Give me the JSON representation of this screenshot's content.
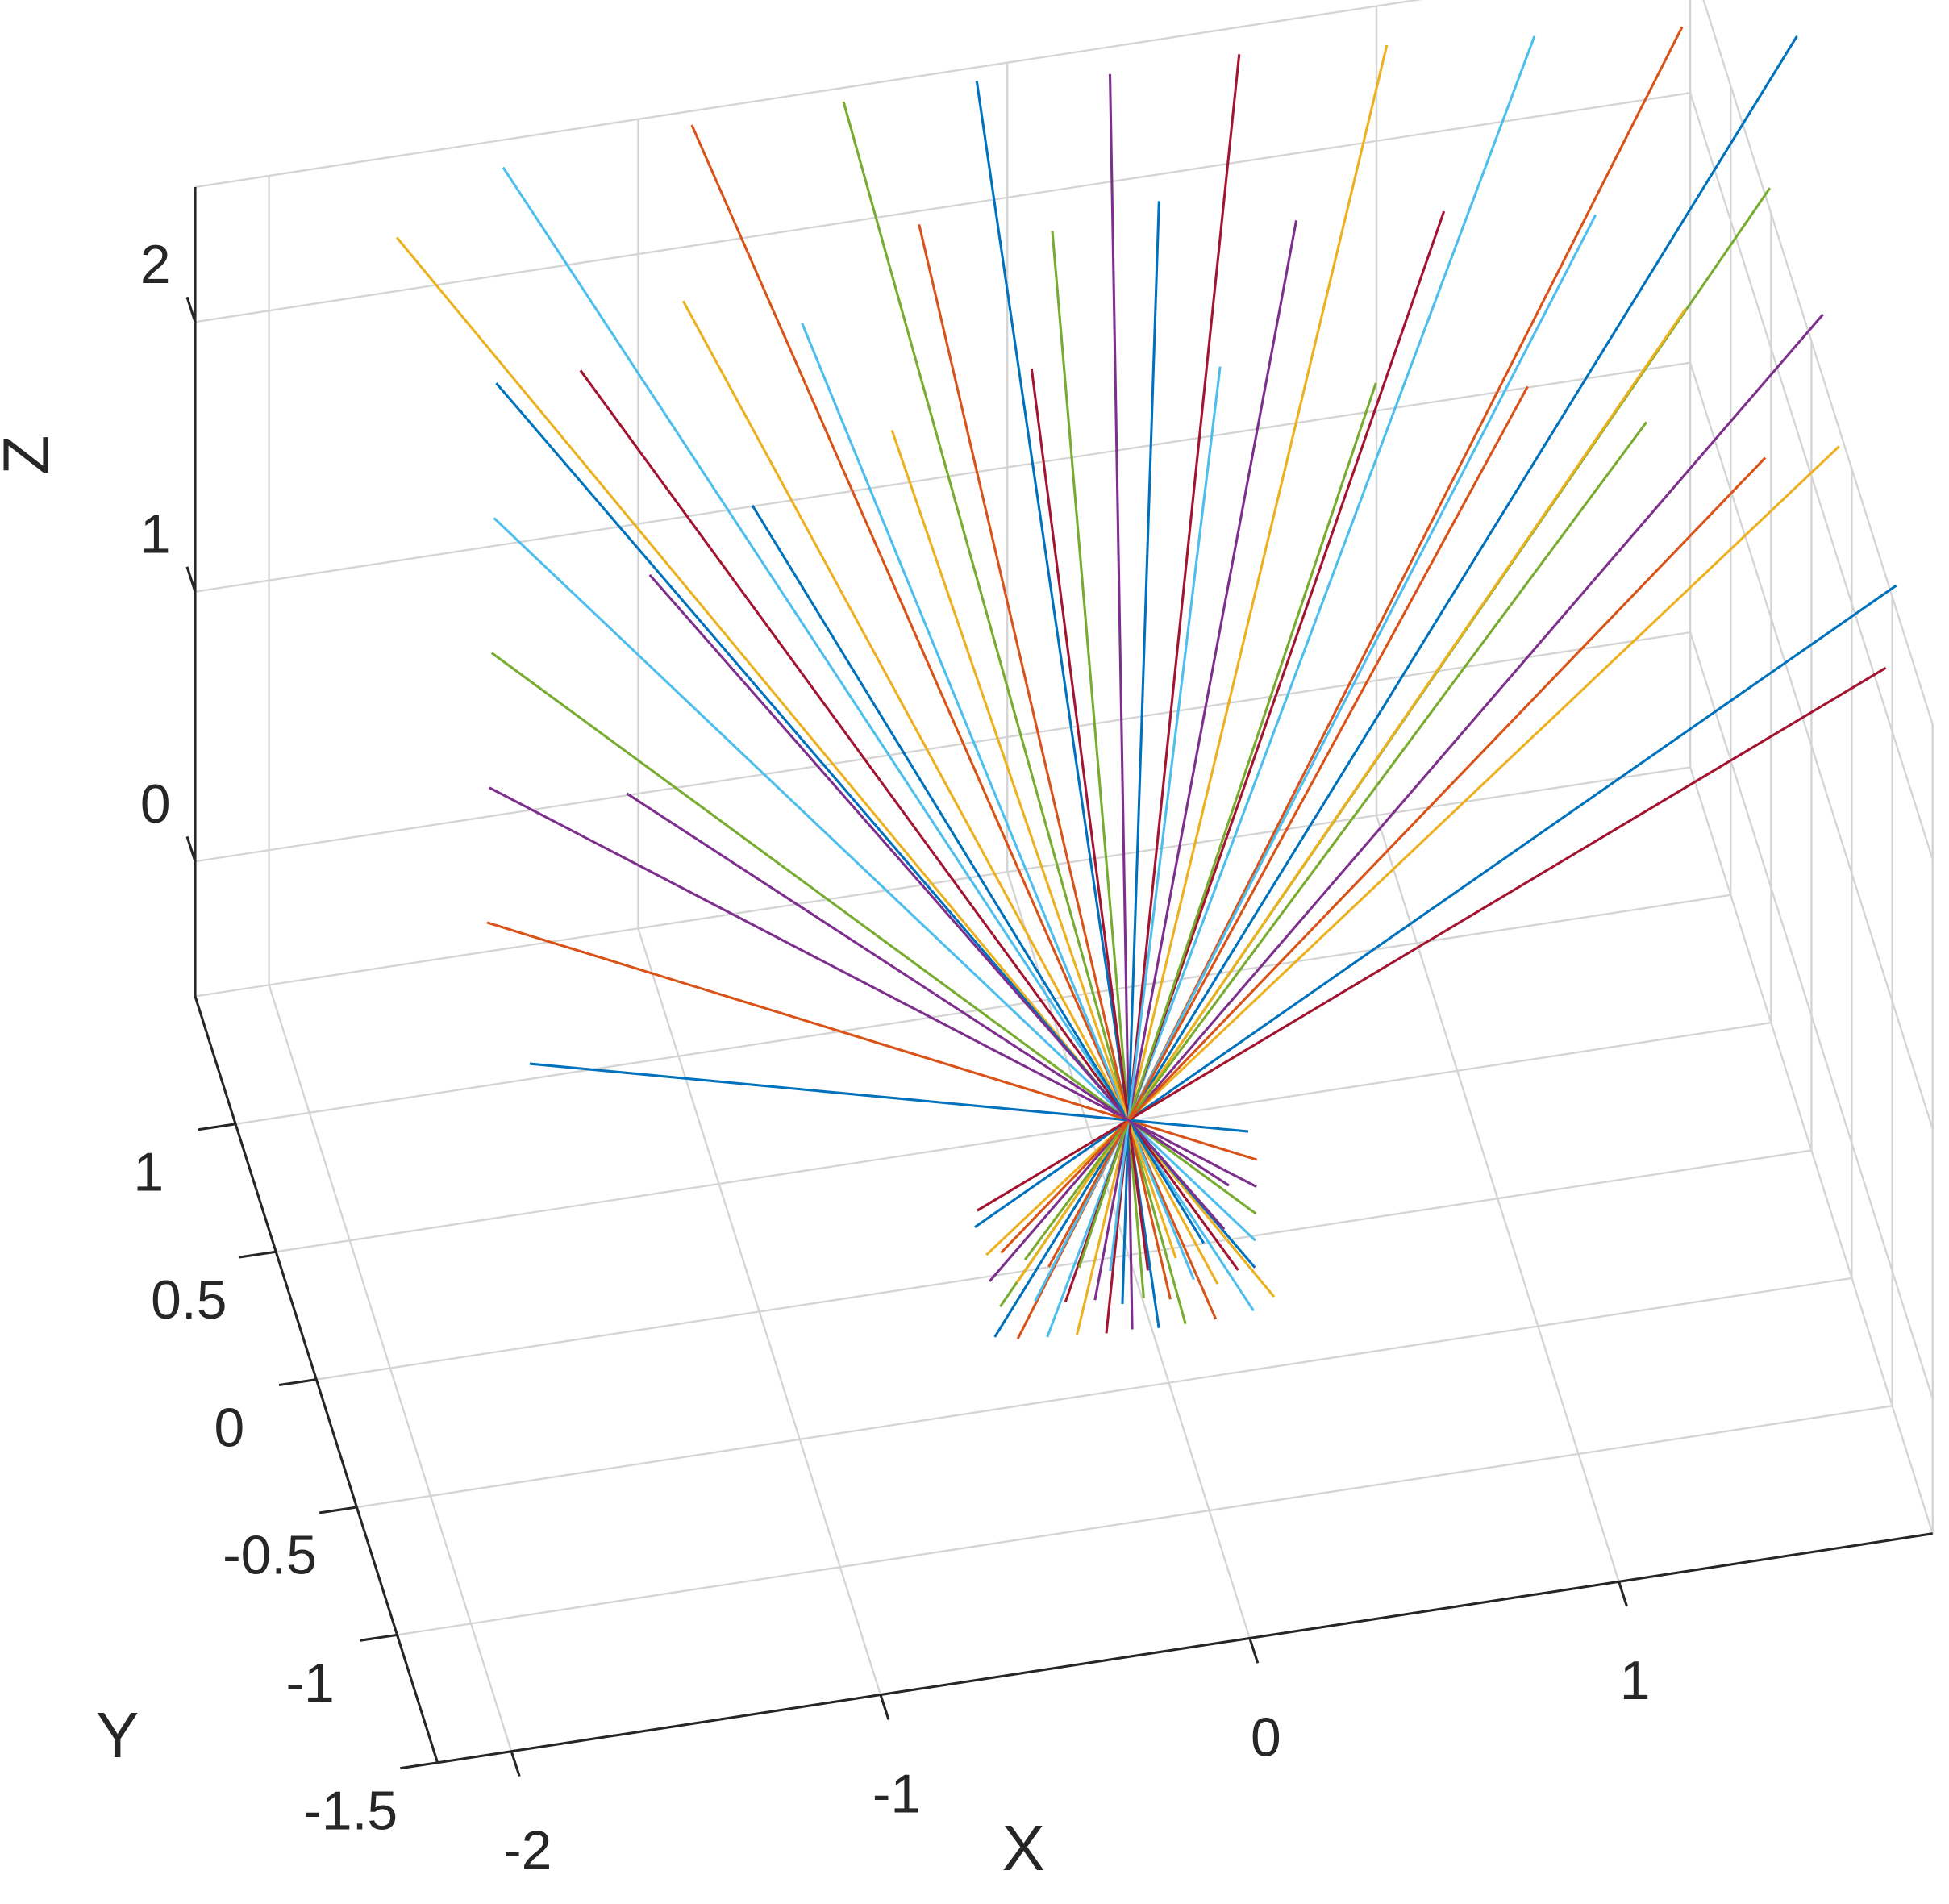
{
  "chart_data": {
    "type": "line3d",
    "xlabel": "X",
    "ylabel": "Y",
    "zlabel": "Z",
    "xlim": [
      -2.2,
      1.85
    ],
    "ylim": [
      -1.5,
      1.5
    ],
    "zlim": [
      -0.5,
      2.5
    ],
    "xticks": [
      -2,
      -1,
      0,
      1
    ],
    "yticks": [
      -1.5,
      -1,
      -0.5,
      0,
      0.5,
      1
    ],
    "zticks": [
      0,
      1,
      2
    ],
    "grid": true,
    "series": [
      {
        "color": "#EDB120",
        "x": [
          0.32,
          -1.61
        ],
        "y": [
          -0.34,
          1.7
        ],
        "z": [
          -0.4,
          2.0
        ]
      },
      {
        "color": "#4DBEEE",
        "x": [
          0.26,
          -1.3
        ],
        "y": [
          -0.36,
          1.8
        ],
        "z": [
          -0.42,
          2.1
        ]
      },
      {
        "color": "#D95319",
        "x": [
          0.16,
          -0.8
        ],
        "y": [
          -0.35,
          1.75
        ],
        "z": [
          -0.44,
          2.2
        ]
      },
      {
        "color": "#77AC30",
        "x": [
          0.08,
          -0.4
        ],
        "y": [
          -0.34,
          1.7
        ],
        "z": [
          -0.45,
          2.25
        ]
      },
      {
        "color": "#0072BD",
        "x": [
          0.01,
          -0.05
        ],
        "y": [
          -0.33,
          1.65
        ],
        "z": [
          -0.46,
          2.3
        ]
      },
      {
        "color": "#7E2F8E",
        "x": [
          -0.06,
          0.3
        ],
        "y": [
          -0.32,
          1.6
        ],
        "z": [
          -0.46,
          2.3
        ]
      },
      {
        "color": "#A2142F",
        "x": [
          -0.13,
          0.65
        ],
        "y": [
          -0.32,
          1.6
        ],
        "z": [
          -0.46,
          2.3
        ]
      },
      {
        "color": "#EDB120",
        "x": [
          -0.21,
          1.05
        ],
        "y": [
          -0.32,
          1.6
        ],
        "z": [
          -0.45,
          2.25
        ]
      },
      {
        "color": "#4DBEEE",
        "x": [
          -0.29,
          1.45
        ],
        "y": [
          -0.32,
          1.6
        ],
        "z": [
          -0.44,
          2.2
        ]
      },
      {
        "color": "#D95319",
        "x": [
          -0.37,
          1.85
        ],
        "y": [
          -0.32,
          1.6
        ],
        "z": [
          -0.43,
          2.15
        ]
      },
      {
        "color": "#0072BD",
        "x": [
          -0.43,
          2.15
        ],
        "y": [
          -0.31,
          1.55
        ],
        "z": [
          -0.42,
          2.1
        ]
      },
      {
        "color": "#77AC30",
        "x": [
          -0.4,
          2.0
        ],
        "y": [
          -0.24,
          1.2
        ],
        "z": [
          -0.38,
          1.9
        ]
      },
      {
        "color": "#7E2F8E",
        "x": [
          -0.42,
          2.1
        ],
        "y": [
          -0.2,
          1.0
        ],
        "z": [
          -0.32,
          1.6
        ]
      },
      {
        "color": "#EDB120",
        "x": [
          -0.42,
          2.1
        ],
        "y": [
          -0.16,
          0.8
        ],
        "z": [
          -0.26,
          1.3
        ]
      },
      {
        "color": "#0072BD",
        "x": [
          -0.44,
          2.2
        ],
        "y": [
          -0.11,
          0.55
        ],
        "z": [
          -0.2,
          1.0
        ]
      },
      {
        "color": "#A2142F",
        "x": [
          -0.43,
          2.15
        ],
        "y": [
          -0.09,
          0.45
        ],
        "z": [
          -0.16,
          0.8
        ]
      },
      {
        "color": "#0072BD",
        "x": [
          0.29,
          -1.45
        ],
        "y": [
          -0.24,
          1.2
        ],
        "z": [
          -0.38,
          1.9
        ]
      },
      {
        "color": "#4DBEEE",
        "x": [
          0.3,
          -1.5
        ],
        "y": [
          -0.2,
          1.0
        ],
        "z": [
          -0.32,
          1.6
        ]
      },
      {
        "color": "#77AC30",
        "x": [
          0.31,
          -1.55
        ],
        "y": [
          -0.16,
          0.8
        ],
        "z": [
          -0.26,
          1.3
        ]
      },
      {
        "color": "#7E2F8E",
        "x": [
          0.32,
          -1.6
        ],
        "y": [
          -0.12,
          0.6
        ],
        "z": [
          -0.2,
          1.0
        ]
      },
      {
        "color": "#D95319",
        "x": [
          0.33,
          -1.65
        ],
        "y": [
          -0.08,
          0.4
        ],
        "z": [
          -0.14,
          0.7
        ]
      },
      {
        "color": "#0072BD",
        "x": [
          0.32,
          -1.6
        ],
        "y": [
          -0.02,
          0.1
        ],
        "z": [
          -0.09,
          0.45
        ]
      },
      {
        "color": "#A2142F",
        "x": [
          0.24,
          -1.2
        ],
        "y": [
          -0.26,
          1.3
        ],
        "z": [
          -0.36,
          1.8
        ]
      },
      {
        "color": "#EDB120",
        "x": [
          0.18,
          -0.9
        ],
        "y": [
          -0.28,
          1.4
        ],
        "z": [
          -0.38,
          1.9
        ]
      },
      {
        "color": "#4DBEEE",
        "x": [
          0.12,
          -0.6
        ],
        "y": [
          -0.26,
          1.3
        ],
        "z": [
          -0.37,
          1.85
        ]
      },
      {
        "color": "#D95319",
        "x": [
          0.05,
          -0.25
        ],
        "y": [
          -0.29,
          1.45
        ],
        "z": [
          -0.4,
          2.0
        ]
      },
      {
        "color": "#77AC30",
        "x": [
          -0.02,
          0.1
        ],
        "y": [
          -0.28,
          1.4
        ],
        "z": [
          -0.39,
          1.95
        ]
      },
      {
        "color": "#0072BD",
        "x": [
          -0.08,
          0.4
        ],
        "y": [
          -0.29,
          1.45
        ],
        "z": [
          -0.39,
          1.95
        ]
      },
      {
        "color": "#7E2F8E",
        "x": [
          -0.15,
          0.75
        ],
        "y": [
          -0.27,
          1.35
        ],
        "z": [
          -0.38,
          1.9
        ]
      },
      {
        "color": "#A2142F",
        "x": [
          -0.23,
          1.15
        ],
        "y": [
          -0.27,
          1.35
        ],
        "z": [
          -0.37,
          1.85
        ]
      },
      {
        "color": "#4DBEEE",
        "x": [
          -0.31,
          1.55
        ],
        "y": [
          -0.26,
          1.3
        ],
        "z": [
          -0.36,
          1.8
        ]
      },
      {
        "color": "#EDB120",
        "x": [
          -0.35,
          1.75
        ],
        "y": [
          -0.22,
          1.1
        ],
        "z": [
          -0.32,
          1.6
        ]
      },
      {
        "color": "#77AC30",
        "x": [
          -0.32,
          1.6
        ],
        "y": [
          -0.18,
          0.9
        ],
        "z": [
          -0.28,
          1.4
        ]
      },
      {
        "color": "#D95319",
        "x": [
          -0.38,
          1.9
        ],
        "y": [
          -0.16,
          0.8
        ],
        "z": [
          -0.26,
          1.3
        ]
      },
      {
        "color": "#7E2F8E",
        "x": [
          0.22,
          -1.1
        ],
        "y": [
          -0.18,
          0.9
        ],
        "z": [
          -0.28,
          1.4
        ]
      },
      {
        "color": "#0072BD",
        "x": [
          0.16,
          -0.8
        ],
        "y": [
          -0.2,
          1.0
        ],
        "z": [
          -0.3,
          1.5
        ]
      },
      {
        "color": "#EDB120",
        "x": [
          0.08,
          -0.4
        ],
        "y": [
          -0.22,
          1.1
        ],
        "z": [
          -0.32,
          1.6
        ]
      },
      {
        "color": "#A2142F",
        "x": [
          0.0,
          0.0
        ],
        "y": [
          -0.24,
          1.2
        ],
        "z": [
          -0.33,
          1.65
        ]
      },
      {
        "color": "#4DBEEE",
        "x": [
          -0.1,
          0.5
        ],
        "y": [
          -0.23,
          1.15
        ],
        "z": [
          -0.32,
          1.6
        ]
      },
      {
        "color": "#77AC30",
        "x": [
          -0.18,
          0.9
        ],
        "y": [
          -0.21,
          1.05
        ],
        "z": [
          -0.31,
          1.55
        ]
      },
      {
        "color": "#D95319",
        "x": [
          -0.26,
          1.3
        ],
        "y": [
          -0.2,
          1.0
        ],
        "z": [
          -0.3,
          1.5
        ]
      },
      {
        "color": "#7E2F8E",
        "x": [
          0.25,
          -1.25
        ],
        "y": [
          -0.1,
          0.5
        ],
        "z": [
          -0.2,
          1.0
        ]
      }
    ]
  }
}
